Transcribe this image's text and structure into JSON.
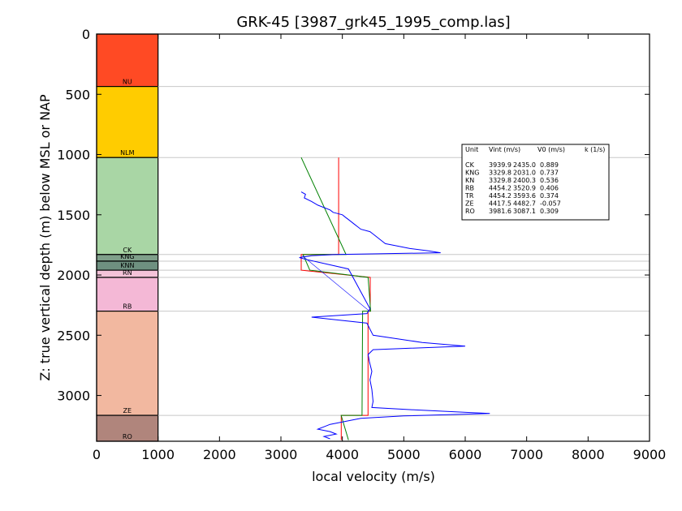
{
  "chart_data": {
    "type": "line",
    "title": "GRK-45 [3987_grk45_1995_comp.las]",
    "xlabel": "local velocity (m/s)",
    "ylabel": "Z: true vertical depth (m) below MSL or NAP",
    "xlim": [
      0,
      9000
    ],
    "ylim": [
      3380,
      0
    ],
    "y_inverted": true,
    "xticks": [
      "0",
      "1000",
      "2000",
      "3000",
      "4000",
      "5000",
      "6000",
      "7000",
      "8000",
      "9000"
    ],
    "yticks": [
      "0",
      "500",
      "1000",
      "1500",
      "2000",
      "2500",
      "3000"
    ],
    "xtick_values": [
      0,
      1000,
      2000,
      3000,
      4000,
      5000,
      6000,
      7000,
      8000,
      9000
    ],
    "ytick_values": [
      0,
      500,
      1000,
      1500,
      2000,
      2500,
      3000
    ],
    "layers": [
      {
        "name": "NU",
        "top": 0,
        "bottom": 435,
        "color": "#ff4a24"
      },
      {
        "name": "NLM",
        "top": 435,
        "bottom": 1025,
        "color": "#ffcc00"
      },
      {
        "name": "CK",
        "top": 1025,
        "bottom": 1830,
        "color": "#a9d6a5"
      },
      {
        "name": "KNG",
        "top": 1830,
        "bottom": 1885,
        "color": "#7f9f8a"
      },
      {
        "name": "KNN",
        "top": 1885,
        "bottom": 1960,
        "color": "#6e9080"
      },
      {
        "name": "RN",
        "top": 1960,
        "bottom": 2020,
        "color": "#f4c3d9"
      },
      {
        "name": "RB",
        "top": 2020,
        "bottom": 2300,
        "color": "#f4b8d6"
      },
      {
        "name": "ZE",
        "top": 2300,
        "bottom": 3165,
        "color": "#f2b8a0"
      },
      {
        "name": "RO",
        "top": 3165,
        "bottom": 3380,
        "color": "#b0857c"
      }
    ],
    "layer_column_x": [
      0,
      1000
    ],
    "table": {
      "header": [
        "Unit",
        "Vint (m/s)",
        "V0 (m/s)",
        "k (1/s)"
      ],
      "rows": [
        [
          "CK",
          "3939.9",
          "2435.0",
          "0.889"
        ],
        [
          "KNG",
          "3329.8",
          "2031.0",
          "0.737"
        ],
        [
          "KN",
          "3329.8",
          "2400.3",
          "0.536"
        ],
        [
          "RB",
          "4454.2",
          "3520.9",
          "0.406"
        ],
        [
          "TR",
          "4454.2",
          "3593.6",
          "0.374"
        ],
        [
          "ZE",
          "4417.5",
          "4482.7",
          "-0.057"
        ],
        [
          "RO",
          "3981.6",
          "3087.1",
          "0.309"
        ]
      ]
    },
    "series": [
      {
        "color": "#ff0000",
        "x": [
          3940,
          3940,
          3330,
          3330,
          4454,
          4454,
          4418,
          4418,
          3982,
          3982
        ],
        "y": [
          1025,
          1830,
          1830,
          1960,
          2020,
          2300,
          2300,
          3165,
          3165,
          3370
        ]
      },
      {
        "color": "#008000",
        "x": [
          3330,
          4060,
          3360,
          3470,
          4420,
          4460,
          4330,
          4320,
          3980,
          4100
        ],
        "y": [
          1025,
          1830,
          1830,
          1960,
          2020,
          2300,
          2300,
          3165,
          3165,
          3370
        ]
      },
      {
        "color": "#0000ff",
        "x": [
          3330,
          3400,
          3380,
          3500,
          3600,
          3700,
          3800,
          3850,
          4000,
          4050,
          4100,
          4150,
          4200,
          4250,
          4300,
          4450,
          4500,
          4550,
          4600,
          4650,
          4700,
          4900,
          5100,
          5400,
          5600,
          3900,
          3500,
          3300,
          3400,
          4100,
          4450,
          4400,
          3500,
          4400,
          4450,
          4500,
          5300,
          6000,
          4500,
          4420,
          4440,
          4480,
          4450,
          4480,
          4500,
          4480,
          5200,
          6400,
          5000,
          4300,
          4000,
          3800,
          3700,
          3600,
          3800,
          3900,
          3700,
          3800
        ],
        "y": [
          1310,
          1330,
          1360,
          1390,
          1420,
          1440,
          1460,
          1480,
          1500,
          1520,
          1540,
          1560,
          1580,
          1600,
          1620,
          1640,
          1660,
          1680,
          1700,
          1720,
          1740,
          1760,
          1780,
          1800,
          1815,
          1830,
          1840,
          1855,
          1870,
          1950,
          2280,
          2320,
          2350,
          2400,
          2450,
          2500,
          2560,
          2590,
          2620,
          2660,
          2720,
          2800,
          2870,
          2950,
          3050,
          3100,
          3120,
          3150,
          3170,
          3190,
          3220,
          3240,
          3260,
          3280,
          3300,
          3320,
          3340,
          3360
        ]
      },
      {
        "color": "#0000ff",
        "x": [
          3350,
          4440
        ],
        "y": [
          1840,
          2300
        ]
      }
    ]
  }
}
